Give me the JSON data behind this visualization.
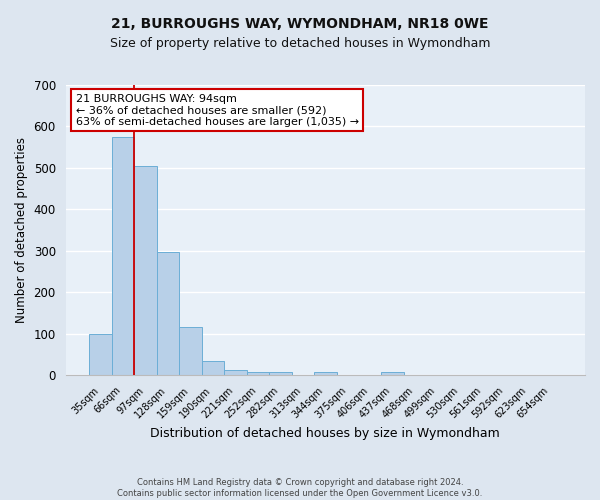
{
  "title": "21, BURROUGHS WAY, WYMONDHAM, NR18 0WE",
  "subtitle": "Size of property relative to detached houses in Wymondham",
  "xlabel": "Distribution of detached houses by size in Wymondham",
  "ylabel": "Number of detached properties",
  "bin_labels": [
    "35sqm",
    "66sqm",
    "97sqm",
    "128sqm",
    "159sqm",
    "190sqm",
    "221sqm",
    "252sqm",
    "282sqm",
    "313sqm",
    "344sqm",
    "375sqm",
    "406sqm",
    "437sqm",
    "468sqm",
    "499sqm",
    "530sqm",
    "561sqm",
    "592sqm",
    "623sqm",
    "654sqm"
  ],
  "bar_heights": [
    100,
    575,
    505,
    298,
    117,
    35,
    14,
    7,
    7,
    0,
    7,
    0,
    0,
    7,
    0,
    0,
    0,
    0,
    0,
    0,
    0
  ],
  "bar_color": "#b8d0e8",
  "bar_edgecolor": "#6baed6",
  "vline_color": "#cc0000",
  "ylim": [
    0,
    700
  ],
  "yticks": [
    0,
    100,
    200,
    300,
    400,
    500,
    600,
    700
  ],
  "annotation_line1": "21 BURROUGHS WAY: 94sqm",
  "annotation_line2": "← 36% of detached houses are smaller (592)",
  "annotation_line3": "63% of semi-detached houses are larger (1,035) →",
  "annotation_box_edgecolor": "#cc0000",
  "footer_line1": "Contains HM Land Registry data © Crown copyright and database right 2024.",
  "footer_line2": "Contains public sector information licensed under the Open Government Licence v3.0.",
  "bg_color": "#dde6f0",
  "plot_bg_color": "#e8f0f8",
  "grid_color": "#ffffff",
  "title_fontsize": 10,
  "subtitle_fontsize": 9,
  "ylabel_fontsize": 8.5,
  "xlabel_fontsize": 9
}
